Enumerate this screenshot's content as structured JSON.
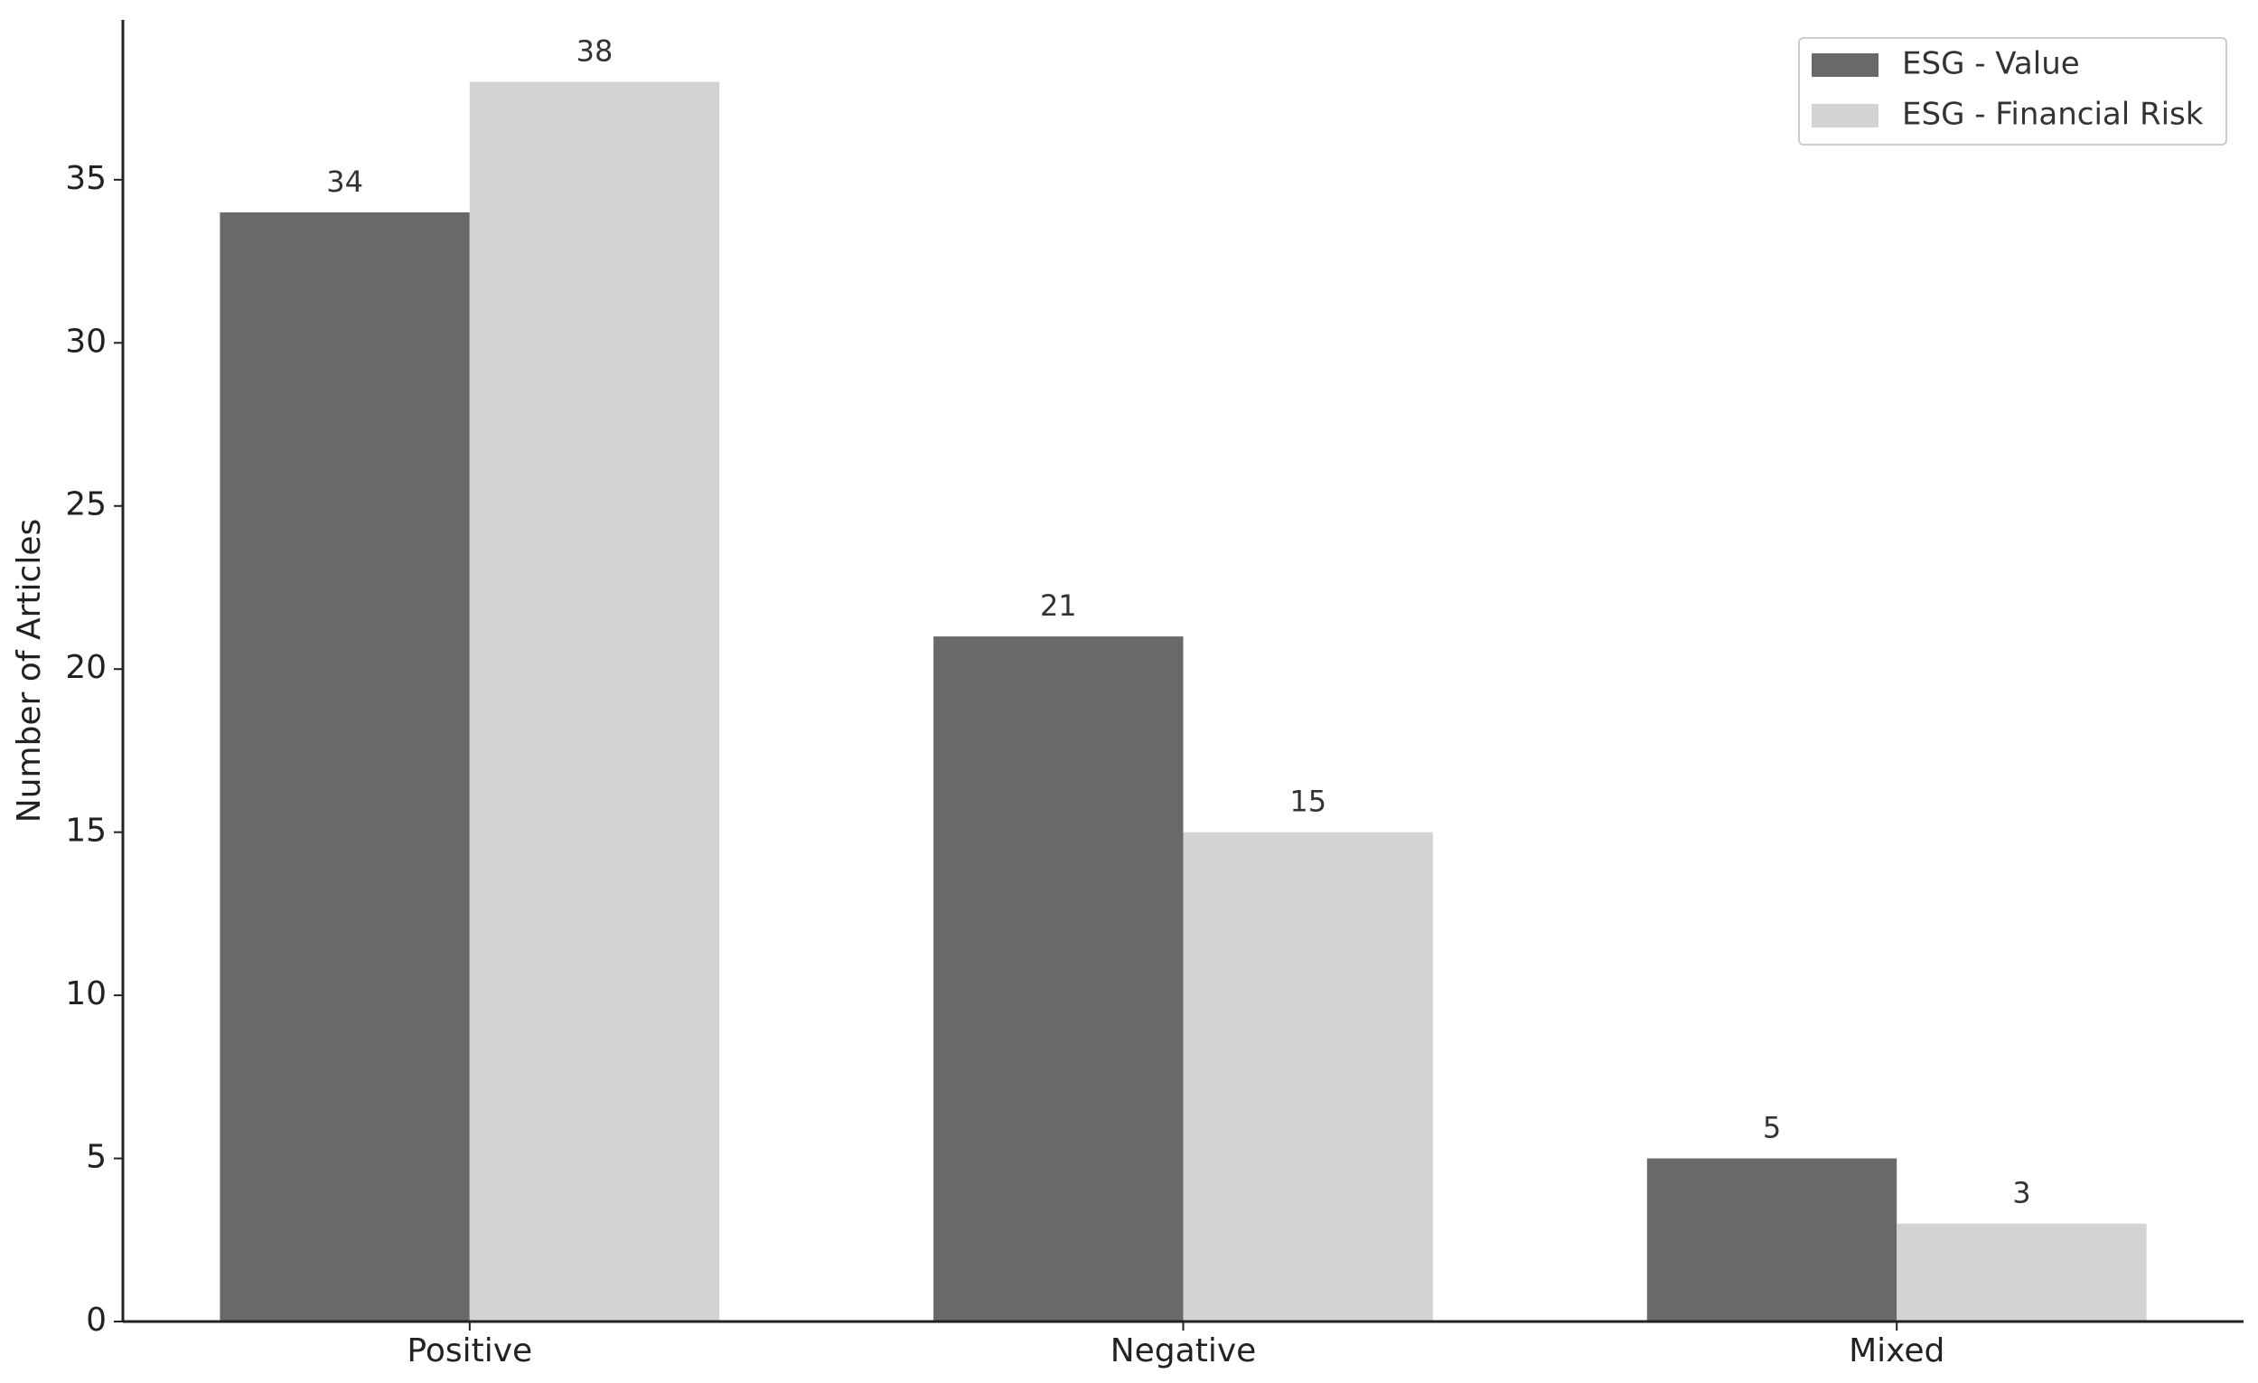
{
  "chart_data": {
    "type": "bar",
    "y_label": "Number of Articles",
    "categories": [
      "Positive",
      "Negative",
      "Mixed"
    ],
    "series": [
      {
        "name": "ESG - Value",
        "color": "#696969",
        "values": [
          34,
          21,
          5
        ]
      },
      {
        "name": "ESG - Financial Risk",
        "color": "#d3d3d3",
        "values": [
          38,
          15,
          3
        ]
      }
    ],
    "ylim": [
      0,
      39.9
    ],
    "yticks": [
      0,
      5,
      10,
      15,
      20,
      25,
      30,
      35
    ],
    "grid": false,
    "legend": "upper right",
    "data_labels": true
  }
}
